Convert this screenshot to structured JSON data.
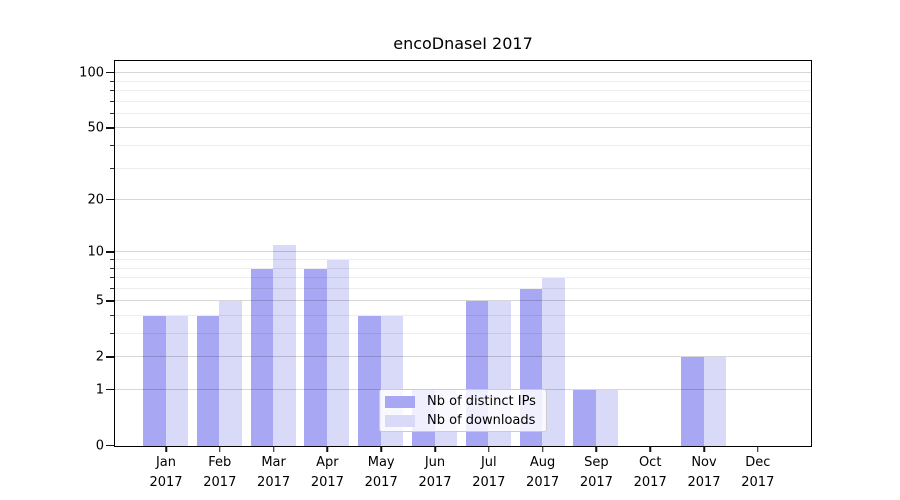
{
  "title": "encoDnaseI 2017",
  "legend": {
    "items": [
      {
        "label": "Nb of distinct IPs",
        "color": "#a7a7f3"
      },
      {
        "label": "Nb of downloads",
        "color": "#d9d9f8"
      }
    ]
  },
  "axes": {
    "y_tick_labels": [
      "0",
      "1",
      "2",
      "5",
      "10",
      "20",
      "50",
      "100"
    ],
    "x_month_labels": [
      "Jan",
      "Feb",
      "Mar",
      "Apr",
      "May",
      "Jun",
      "Jul",
      "Aug",
      "Sep",
      "Oct",
      "Nov",
      "Dec"
    ],
    "x_year_label": "2017"
  },
  "colors": {
    "bar_distinct_ips": "#a7a7f3",
    "bar_downloads": "#d9d9f8",
    "grid_major": "#d2d2d2",
    "grid_minor": "#ededed",
    "spine": "#000000"
  },
  "chart_data": {
    "type": "bar",
    "title": "encoDnaseI 2017",
    "categories": [
      "Jan 2017",
      "Feb 2017",
      "Mar 2017",
      "Apr 2017",
      "May 2017",
      "Jun 2017",
      "Jul 2017",
      "Aug 2017",
      "Sep 2017",
      "Oct 2017",
      "Nov 2017",
      "Dec 2017"
    ],
    "series": [
      {
        "name": "Nb of distinct IPs",
        "color": "#a7a7f3",
        "values": [
          4,
          4,
          8,
          8,
          4,
          1,
          5,
          6,
          1,
          0,
          2,
          0
        ]
      },
      {
        "name": "Nb of downloads",
        "color": "#d9d9f8",
        "values": [
          4,
          5,
          11,
          9,
          4,
          1,
          5,
          7,
          1,
          0,
          2,
          0
        ]
      }
    ],
    "xlabel": "",
    "ylabel": "",
    "yscale": "log1p: position = log10(1 + value)",
    "ylim": [
      0,
      115
    ],
    "y_major_ticks": [
      0,
      1,
      2,
      5,
      10,
      20,
      50,
      100
    ],
    "y_minor_ticks": [
      3,
      4,
      6,
      7,
      8,
      9,
      30,
      40,
      60,
      70,
      80,
      90
    ],
    "grid": true,
    "legend_position": "lower center (inside axes)"
  }
}
